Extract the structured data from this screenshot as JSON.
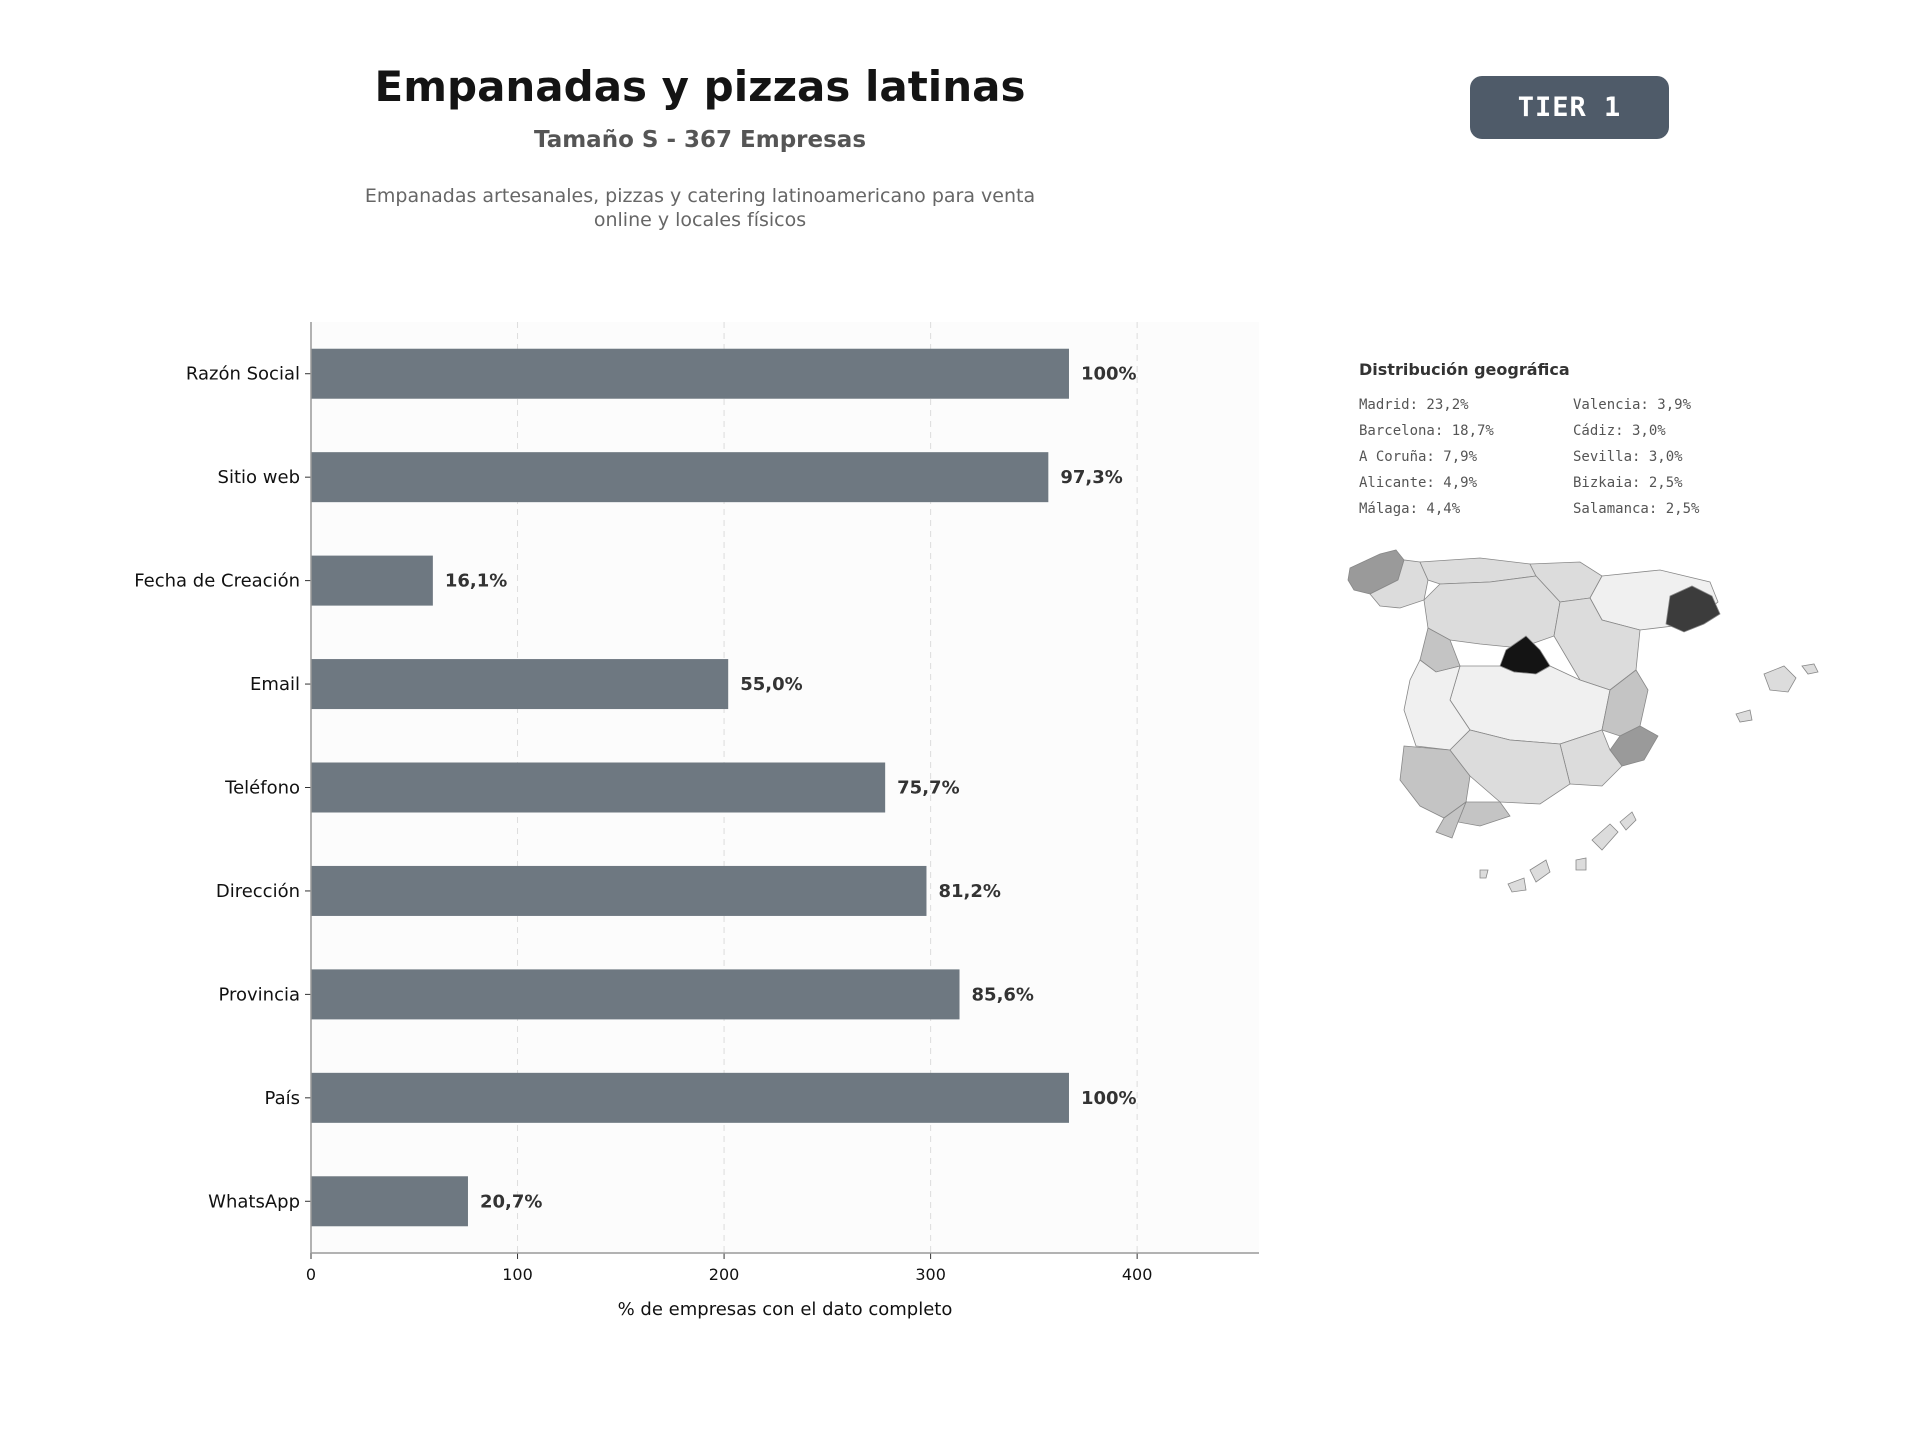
{
  "header": {
    "title": "Empanadas y pizzas latinas",
    "subtitle": "Tamaño S - 367 Empresas",
    "description_lines": [
      "Empanadas artesanales, pizzas y catering latinoamericano para venta",
      "online y locales físicos"
    ]
  },
  "badge": {
    "label": "TIER 1"
  },
  "chart_data": {
    "type": "bar",
    "orientation": "horizontal",
    "categories": [
      "Razón Social",
      "Sitio web",
      "Fecha de Creación",
      "Email",
      "Teléfono",
      "Dirección",
      "Provincia",
      "País",
      "WhatsApp"
    ],
    "values": [
      367,
      357,
      59,
      202,
      278,
      298,
      314,
      367,
      76
    ],
    "data_labels": [
      "100%",
      "97,3%",
      "16,1%",
      "55,0%",
      "75,7%",
      "81,2%",
      "85,6%",
      "100%",
      "20,7%"
    ],
    "xlabel": "% de empresas con el dato completo",
    "ylabel": "",
    "xlim": [
      0,
      459
    ],
    "xticks": [
      0,
      100,
      200,
      300,
      400
    ],
    "grid": "vertical dashed",
    "bar_color": "#6e7881"
  },
  "geo": {
    "title": "Distribución geográfica",
    "items": [
      "Madrid: 23,2%",
      "Valencia: 3,9%",
      "Barcelona: 18,7%",
      "Cádiz: 3,0%",
      "A Coruña: 7,9%",
      "Sevilla: 3,0%",
      "Alicante: 4,9%",
      "Bizkaia: 2,5%",
      "Málaga: 4,4%",
      "Salamanca: 2,5%"
    ]
  },
  "colors": {
    "map_darkest": "#141414",
    "map_dark": "#3c3c3c",
    "map_mid": "#9a9a9a",
    "map_light": "#c4c4c4",
    "map_lighter": "#dcdcdc",
    "map_lightest": "#f0f0f0"
  }
}
